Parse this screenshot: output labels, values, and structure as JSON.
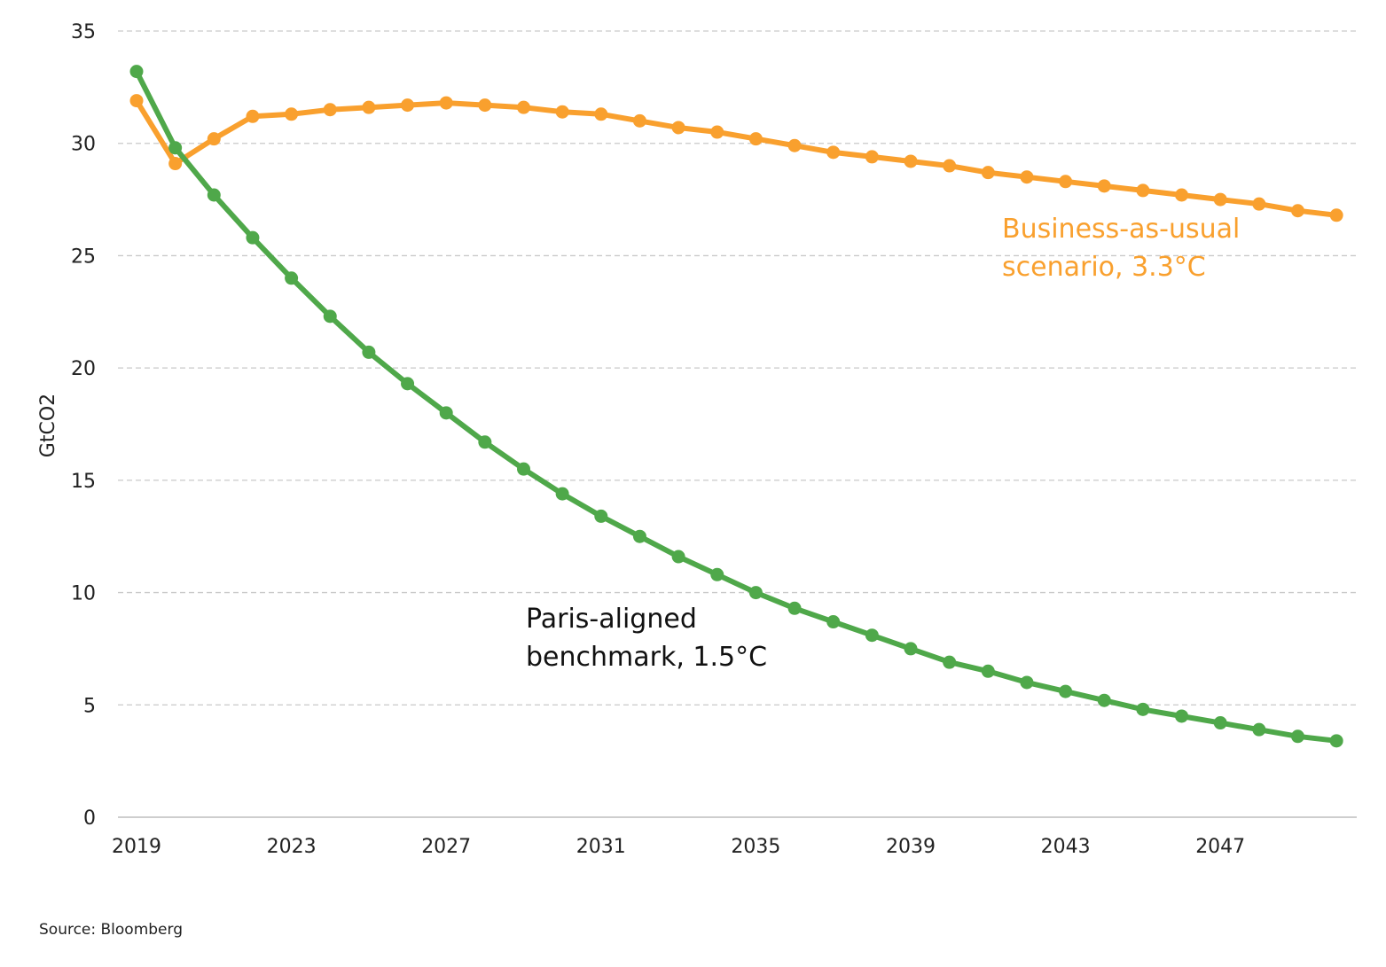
{
  "chart_data": {
    "type": "line",
    "title": "",
    "xlabel": "",
    "ylabel": "GtCO2",
    "ylim": [
      0,
      35
    ],
    "yticks": [
      0,
      5,
      10,
      15,
      20,
      25,
      30,
      35
    ],
    "xlim": [
      2019,
      2050
    ],
    "xticks": [
      2019,
      2023,
      2027,
      2031,
      2035,
      2039,
      2043,
      2047
    ],
    "grid": "horizontal dashed",
    "legend": "none",
    "x": [
      2019,
      2020,
      2021,
      2022,
      2023,
      2024,
      2025,
      2026,
      2027,
      2028,
      2029,
      2030,
      2031,
      2032,
      2033,
      2034,
      2035,
      2036,
      2037,
      2038,
      2039,
      2040,
      2041,
      2042,
      2043,
      2044,
      2045,
      2046,
      2047,
      2048,
      2049,
      2050
    ],
    "series": [
      {
        "name": "Business-as-usual scenario, 3.3°C",
        "color": "#F9A02E",
        "values": [
          31.9,
          29.1,
          30.2,
          31.2,
          31.3,
          31.5,
          31.6,
          31.7,
          31.8,
          31.7,
          31.6,
          31.4,
          31.3,
          31.0,
          30.7,
          30.5,
          30.2,
          29.9,
          29.6,
          29.4,
          29.2,
          29.0,
          28.7,
          28.5,
          28.3,
          28.1,
          27.9,
          27.7,
          27.5,
          27.3,
          27.0,
          26.8
        ]
      },
      {
        "name": "Paris-aligned benchmark, 1.5°C",
        "color": "#4FA84A",
        "values": [
          33.2,
          29.8,
          27.7,
          25.8,
          24.0,
          22.3,
          20.7,
          19.3,
          18.0,
          16.7,
          15.5,
          14.4,
          13.4,
          12.5,
          11.6,
          10.8,
          10.0,
          9.3,
          8.7,
          8.1,
          7.5,
          6.9,
          6.5,
          6.0,
          5.6,
          5.2,
          4.8,
          4.5,
          4.2,
          3.9,
          3.6,
          3.4
        ]
      }
    ],
    "annotations": [
      {
        "lines": [
          "Business-as-usual",
          "scenario, 3.3°C"
        ],
        "color": "#F9A02E"
      },
      {
        "lines": [
          "Paris-aligned",
          "benchmark, 1.5°C"
        ],
        "color": "#111111"
      }
    ]
  },
  "source": "Source: Bloomberg"
}
